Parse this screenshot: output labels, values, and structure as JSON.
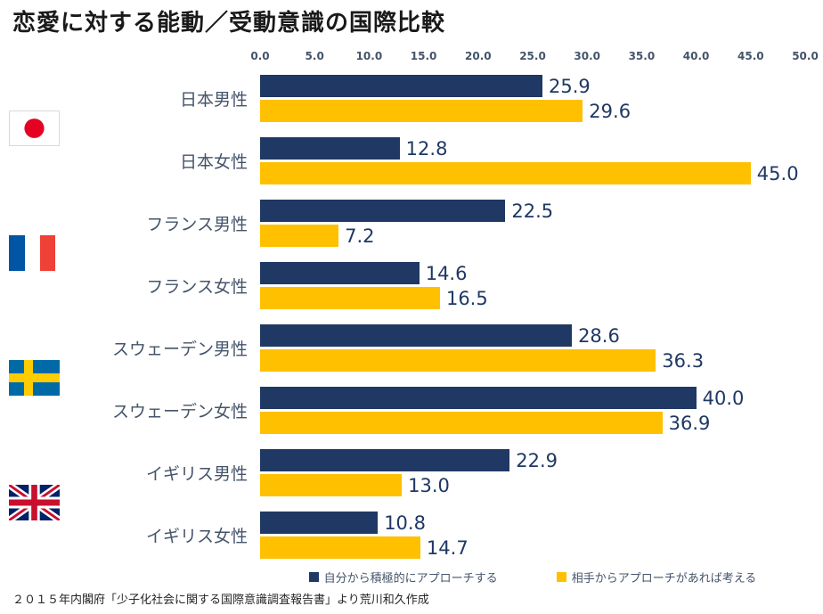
{
  "title": "恋愛に対する能動／受動意識の国際比較",
  "footer": {
    "source": "２０１５年内閣府「少子化社会に関する国際意識調査報告書」より荒川和久作成"
  },
  "colors": {
    "active_series": "#1f3864",
    "passive_series": "#ffc000",
    "category_label": "#44546a",
    "value_label": "#1f3864"
  },
  "icons": {
    "flags": [
      "japan-flag-icon",
      "france-flag-icon",
      "sweden-flag-icon",
      "uk-flag-icon"
    ]
  },
  "chart_data": {
    "type": "bar",
    "orientation": "horizontal",
    "title": "恋愛に対する能動／受動意識の国際比較",
    "categories": [
      "日本男性",
      "日本女性",
      "フランス男性",
      "フランス女性",
      "スウェーデン男性",
      "スウェーデン女性",
      "イギリス男性",
      "イギリス女性"
    ],
    "series": [
      {
        "name": "自分から積極的にアプローチする",
        "color": "#1f3864",
        "values": [
          25.9,
          12.8,
          22.5,
          14.6,
          28.6,
          40.0,
          22.9,
          10.8
        ]
      },
      {
        "name": "相手からアプローチがあれば考える",
        "color": "#ffc000",
        "values": [
          29.6,
          45.0,
          7.2,
          16.5,
          36.3,
          36.9,
          13.0,
          14.7
        ]
      }
    ],
    "xlim": [
      0,
      50
    ],
    "x_ticks": [
      "0.0",
      "5.0",
      "10.0",
      "15.0",
      "20.0",
      "25.0",
      "30.0",
      "35.0",
      "40.0",
      "45.0",
      "50.0"
    ],
    "grid": false,
    "legend_position": "bottom",
    "value_labels": true,
    "country_groups": [
      {
        "flag": "japan-flag-icon",
        "rows": [
          0,
          1
        ]
      },
      {
        "flag": "france-flag-icon",
        "rows": [
          2,
          3
        ]
      },
      {
        "flag": "sweden-flag-icon",
        "rows": [
          4,
          5
        ]
      },
      {
        "flag": "uk-flag-icon",
        "rows": [
          6,
          7
        ]
      }
    ]
  }
}
